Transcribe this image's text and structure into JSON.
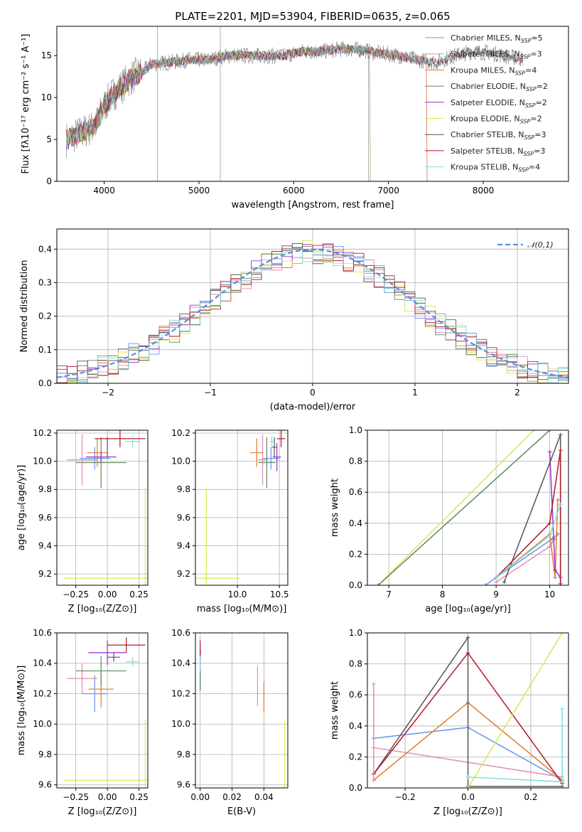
{
  "figure_title": "PLATE=2201, MJD=53904, FIBERID=0635, z=0.065",
  "colors": {
    "Chabrier MILES": "#6495ed",
    "Salpeter MILES": "#e68ab3",
    "Kroupa MILES": "#e07b2a",
    "Chabrier ELODIE": "#5c8a5c",
    "Salpeter ELODIE": "#9b30c9",
    "Kroupa ELODIE": "#d4ea50",
    "Chabrier STELIB": "#555555",
    "Salpeter STELIB": "#b0182a",
    "Kroupa STELIB": "#7fdede",
    "data": "#808080",
    "gauss": "#5b8dd9"
  },
  "legend_spectrum": [
    {
      "name": "Chabrier MILES",
      "base": "Chabrier MILES, N",
      "sub": "SSP",
      "val": "=5"
    },
    {
      "name": "Salpeter MILES",
      "base": "Salpeter MILES, N",
      "sub": "SSP",
      "val": "=3"
    },
    {
      "name": "Kroupa MILES",
      "base": "Kroupa MILES, N",
      "sub": "SSP",
      "val": "=4"
    },
    {
      "name": "Chabrier ELODIE",
      "base": "Chabrier ELODIE, N",
      "sub": "SSP",
      "val": "=2"
    },
    {
      "name": "Salpeter ELODIE",
      "base": "Salpeter ELODIE, N",
      "sub": "SSP",
      "val": "=2"
    },
    {
      "name": "Kroupa ELODIE",
      "base": "Kroupa ELODIE, N",
      "sub": "SSP",
      "val": "=2"
    },
    {
      "name": "Chabrier STELIB",
      "base": "Chabrier STELIB, N",
      "sub": "SSP",
      "val": "=3"
    },
    {
      "name": "Salpeter STELIB",
      "base": "Salpeter STELIB, N",
      "sub": "SSP",
      "val": "=3"
    },
    {
      "name": "Kroupa STELIB",
      "base": "Kroupa STELIB, N",
      "sub": "SSP",
      "val": "=4"
    }
  ],
  "chart_data": [
    {
      "id": "spectrum",
      "type": "line",
      "xlabel": "wavelength [Angstrom, rest frame]",
      "ylabel": "Flux [fλ10⁻¹⁷ erg cm⁻² s⁻¹ A⁻¹]",
      "xlim": [
        3500,
        8900
      ],
      "ylim": [
        0,
        18.5
      ],
      "xticks": [
        4000,
        5000,
        6000,
        7000,
        8000
      ],
      "yticks": [
        0,
        5,
        10,
        15
      ],
      "continuum_x": [
        3600,
        3800,
        3900,
        4000,
        4100,
        4200,
        4300,
        4400,
        4500,
        4700,
        4900,
        5100,
        5300,
        5500,
        5700,
        5900,
        6100,
        6300,
        6500,
        6700,
        6900,
        7100,
        7300,
        7500,
        7700,
        7900,
        8100,
        8300,
        8500
      ],
      "continuum_y": [
        5,
        6,
        6.5,
        9,
        10.5,
        11.5,
        12.5,
        13,
        14,
        14.2,
        14.5,
        14.5,
        15,
        15,
        15,
        15,
        15.5,
        15.5,
        15.8,
        15.7,
        15.3,
        15,
        14.5,
        14.2,
        15,
        15.5,
        15.3,
        14.8,
        14.5
      ]
    },
    {
      "id": "residual_hist",
      "type": "step",
      "xlabel": "(data-model)/error",
      "ylabel": "Normed distribution",
      "xlim": [
        -2.5,
        2.5
      ],
      "ylim": [
        0,
        0.46
      ],
      "xticks": [
        -2,
        -1,
        0,
        1,
        2
      ],
      "yticks": [
        0.0,
        0.1,
        0.2,
        0.3,
        0.4
      ],
      "legend": "𝒩(0,1)"
    },
    {
      "id": "age_vs_Z",
      "type": "errorbar",
      "xlabel": "Z [log₁₀(Z/Z⊙)]",
      "ylabel": "age  [log₁₀(age/yr)]",
      "xlim": [
        -0.4,
        0.32
      ],
      "ylim": [
        9.12,
        10.22
      ],
      "xticks": [
        -0.25,
        0.0,
        0.25
      ],
      "yticks": [
        9.2,
        9.4,
        9.6,
        9.8,
        10.0,
        10.2
      ],
      "points": [
        {
          "s": "Chabrier MILES",
          "x": -0.1,
          "y": 10.02,
          "xe": 0.12,
          "ye": 0.08
        },
        {
          "s": "Salpeter MILES",
          "x": -0.2,
          "y": 10.01,
          "xe": 0.12,
          "ye": 0.18
        },
        {
          "s": "Kroupa MILES",
          "x": -0.08,
          "y": 10.06,
          "xe": 0.08,
          "ye": 0.1
        },
        {
          "s": "Chabrier ELODIE",
          "x": -0.05,
          "y": 9.99,
          "xe": 0.2,
          "ye": 0.18
        },
        {
          "s": "Salpeter ELODIE",
          "x": -0.05,
          "y": 10.03,
          "xe": 0.12,
          "ye": 0.04
        },
        {
          "s": "Kroupa ELODIE",
          "x": 0.3,
          "y": 9.17,
          "xe": 0.65,
          "ye": 0.64
        },
        {
          "s": "Chabrier STELIB",
          "x": 0.0,
          "y": 10.1,
          "xe": 0.0,
          "ye": 0.07
        },
        {
          "s": "Salpeter STELIB",
          "x": 0.1,
          "y": 10.16,
          "xe": 0.2,
          "ye": 0.06
        },
        {
          "s": "Kroupa STELIB",
          "x": 0.2,
          "y": 10.14,
          "xe": 0.06,
          "ye": 0.04
        }
      ]
    },
    {
      "id": "age_vs_mass",
      "type": "errorbar",
      "xlabel": "mass [log₁₀(M/M⊙)]",
      "ylabel": "",
      "xlim": [
        9.5,
        10.6
      ],
      "ylim": [
        9.12,
        10.22
      ],
      "xticks": [
        10.0,
        10.5
      ],
      "yticks": [
        9.2,
        9.4,
        9.6,
        9.8,
        10.0,
        10.2
      ],
      "points": [
        {
          "s": "Chabrier MILES",
          "x": 10.4,
          "y": 10.02,
          "xe": 0.1,
          "ye": 0.08
        },
        {
          "s": "Salpeter MILES",
          "x": 10.3,
          "y": 10.01,
          "xe": 0.05,
          "ye": 0.18
        },
        {
          "s": "Kroupa MILES",
          "x": 10.23,
          "y": 10.06,
          "xe": 0.08,
          "ye": 0.1
        },
        {
          "s": "Chabrier ELODIE",
          "x": 10.35,
          "y": 9.99,
          "xe": 0.1,
          "ye": 0.18
        },
        {
          "s": "Salpeter ELODIE",
          "x": 10.47,
          "y": 10.03,
          "xe": 0.05,
          "ye": 0.1
        },
        {
          "s": "Kroupa ELODIE",
          "x": 9.63,
          "y": 9.17,
          "xe": 0.4,
          "ye": 0.64
        },
        {
          "s": "Chabrier STELIB",
          "x": 10.44,
          "y": 10.1,
          "xe": 0.03,
          "ye": 0.07
        },
        {
          "s": "Salpeter STELIB",
          "x": 10.52,
          "y": 10.16,
          "xe": 0.05,
          "ye": 0.06
        },
        {
          "s": "Kroupa STELIB",
          "x": 10.41,
          "y": 10.14,
          "xe": 0.03,
          "ye": 0.04
        }
      ]
    },
    {
      "id": "weight_vs_age",
      "type": "line",
      "xlabel": "age  [log₁₀(age/yr)]",
      "ylabel": "mass weight",
      "xlim": [
        6.6,
        10.35
      ],
      "ylim": [
        0,
        1
      ],
      "xticks": [
        7,
        8,
        9,
        10
      ],
      "yticks": [
        0.0,
        0.2,
        0.4,
        0.6,
        0.8,
        1.0
      ],
      "series": [
        {
          "s": "Kroupa ELODIE",
          "x": [
            6.8,
            9.7
          ],
          "y": [
            0,
            1
          ]
        },
        {
          "s": "Chabrier ELODIE",
          "x": [
            6.8,
            10.0
          ],
          "y": [
            0,
            1
          ]
        },
        {
          "s": "Chabrier MILES",
          "x": [
            8.8,
            9.0,
            10.05,
            10.15
          ],
          "y": [
            0,
            0.05,
            0.3,
            0.33
          ]
        },
        {
          "s": "Salpeter MILES",
          "x": [
            9.0,
            10.0,
            10.1
          ],
          "y": [
            0.02,
            0.25,
            0.3
          ]
        },
        {
          "s": "Kroupa MILES",
          "x": [
            9.0,
            10.0,
            10.1,
            10.15
          ],
          "y": [
            0.05,
            0.33,
            0.05,
            0.55
          ]
        },
        {
          "s": "Salpeter ELODIE",
          "x": [
            10.0,
            10.1,
            10.2
          ],
          "y": [
            0.86,
            0.1,
            0.05
          ]
        },
        {
          "s": "Chabrier STELIB",
          "x": [
            9.15,
            10.2,
            10.2
          ],
          "y": [
            0.02,
            0.97,
            0.01
          ]
        },
        {
          "s": "Salpeter STELIB",
          "x": [
            9.0,
            10.0,
            10.2,
            10.2
          ],
          "y": [
            0.05,
            0.4,
            0.87,
            0.0
          ]
        },
        {
          "s": "Kroupa STELIB",
          "x": [
            9.0,
            10.0,
            10.2
          ],
          "y": [
            0.05,
            0.32,
            0.52
          ]
        }
      ]
    },
    {
      "id": "mass_vs_Z",
      "type": "errorbar",
      "xlabel": "Z [log₁₀(Z/Z⊙)]",
      "ylabel": "mass [log₁₀(M/M⊙)]",
      "xlim": [
        -0.4,
        0.32
      ],
      "ylim": [
        9.58,
        10.6
      ],
      "xticks": [
        -0.25,
        0.0,
        0.25
      ],
      "yticks": [
        9.6,
        9.8,
        10.0,
        10.2,
        10.4,
        10.6
      ],
      "points": [
        {
          "s": "Chabrier MILES",
          "x": -0.1,
          "y": 10.2,
          "xe": 0.1,
          "ye": 0.12
        },
        {
          "s": "Salpeter MILES",
          "x": -0.2,
          "y": 10.3,
          "xe": 0.12,
          "ye": 0.1
        },
        {
          "s": "Kroupa MILES",
          "x": -0.05,
          "y": 10.23,
          "xe": 0.1,
          "ye": 0.12
        },
        {
          "s": "Chabrier ELODIE",
          "x": -0.05,
          "y": 10.35,
          "xe": 0.2,
          "ye": 0.1
        },
        {
          "s": "Salpeter ELODIE",
          "x": 0.0,
          "y": 10.47,
          "xe": 0.15,
          "ye": 0.08
        },
        {
          "s": "Kroupa ELODIE",
          "x": 0.3,
          "y": 9.63,
          "xe": 0.65,
          "ye": 0.4
        },
        {
          "s": "Chabrier STELIB",
          "x": 0.05,
          "y": 10.44,
          "xe": 0.05,
          "ye": 0.03
        },
        {
          "s": "Salpeter STELIB",
          "x": 0.15,
          "y": 10.52,
          "xe": 0.15,
          "ye": 0.05
        },
        {
          "s": "Kroupa STELIB",
          "x": 0.2,
          "y": 10.41,
          "xe": 0.05,
          "ye": 0.03
        }
      ]
    },
    {
      "id": "mass_vs_EBV",
      "type": "errorbar",
      "xlabel": "E(B-V)",
      "ylabel": "",
      "xlim": [
        -0.003,
        0.055
      ],
      "ylim": [
        9.58,
        10.6
      ],
      "xticks": [
        0.0,
        0.02,
        0.04
      ],
      "yticks": [
        9.6,
        9.8,
        10.0,
        10.2,
        10.4,
        10.6
      ],
      "points": [
        {
          "s": "Chabrier MILES",
          "x": 0.0,
          "y": 10.35,
          "xe": 0,
          "ye": 0.12
        },
        {
          "s": "Salpeter MILES",
          "x": 0.036,
          "y": 10.25,
          "xe": 0,
          "ye": 0.13
        },
        {
          "s": "Kroupa MILES",
          "x": 0.04,
          "y": 10.18,
          "xe": 0,
          "ye": 0.1
        },
        {
          "s": "Chabrier ELODIE",
          "x": 0.0,
          "y": 10.3,
          "xe": 0,
          "ye": 0.08
        },
        {
          "s": "Salpeter ELODIE",
          "x": 0.0,
          "y": 10.44,
          "xe": 0,
          "ye": 0.05
        },
        {
          "s": "Kroupa ELODIE",
          "x": 0.053,
          "y": 9.8,
          "xe": 0,
          "ye": 0.22
        },
        {
          "s": "Chabrier STELIB",
          "x": 0.0,
          "y": 10.45,
          "xe": 0,
          "ye": 0.03
        },
        {
          "s": "Salpeter STELIB",
          "x": 0.0,
          "y": 10.5,
          "xe": 0,
          "ye": 0.05
        },
        {
          "s": "Kroupa STELIB",
          "x": 0.0,
          "y": 10.4,
          "xe": 0,
          "ye": 0.05
        }
      ]
    },
    {
      "id": "weight_vs_Z",
      "type": "line",
      "xlabel": "Z [log₁₀(Z/Z⊙)]",
      "ylabel": "mass weight",
      "xlim": [
        -0.32,
        0.32
      ],
      "ylim": [
        0,
        1
      ],
      "xticks": [
        -0.2,
        0.0,
        0.2
      ],
      "yticks": [
        0.0,
        0.2,
        0.4,
        0.6,
        0.8,
        1.0
      ],
      "series": [
        {
          "s": "Chabrier MILES",
          "x": [
            -0.3,
            0.0,
            0.3
          ],
          "y": [
            0.32,
            0.39,
            0.05
          ]
        },
        {
          "s": "Salpeter MILES",
          "x": [
            -0.3,
            0.3
          ],
          "y": [
            0.26,
            0.07
          ]
        },
        {
          "s": "Kroupa MILES",
          "x": [
            -0.3,
            0.0,
            0.3
          ],
          "y": [
            0.05,
            0.55,
            0.05
          ]
        },
        {
          "s": "Chabrier STELIB",
          "x": [
            -0.3,
            0.0,
            0.0,
            0.3
          ],
          "y": [
            0.09,
            0.97,
            0.01,
            0.01
          ]
        },
        {
          "s": "Salpeter STELIB",
          "x": [
            -0.3,
            0.0,
            0.3
          ],
          "y": [
            0.09,
            0.87,
            0.03
          ]
        },
        {
          "s": "Kroupa STELIB",
          "x": [
            0.0,
            0.3,
            0.3
          ],
          "y": [
            0.07,
            0.04,
            0.51
          ]
        },
        {
          "s": "Kroupa ELODIE",
          "x": [
            0.0,
            0.3
          ],
          "y": [
            0.0,
            1.0
          ]
        },
        {
          "s": "Salpeter MILES",
          "x": [
            -0.3,
            -0.3
          ],
          "y": [
            0.05,
            0.67
          ]
        }
      ]
    }
  ]
}
